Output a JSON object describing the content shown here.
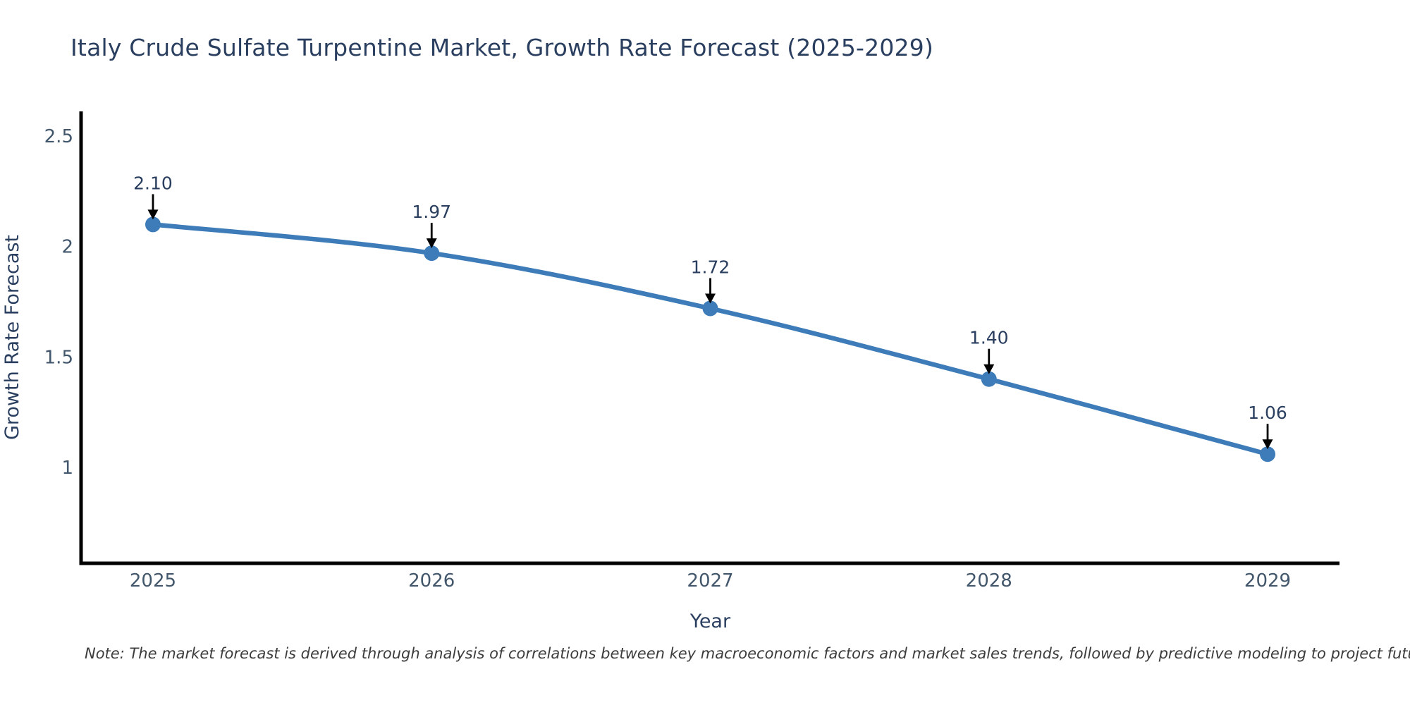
{
  "note": {
    "text": "Note: The market forecast is derived through analysis of correlations between key macroeconomic factors and market sales trends, followed by predictive modeling to project future sales."
  },
  "chart_data": {
    "type": "line",
    "title": "Italy Crude Sulfate Turpentine Market, Growth Rate Forecast (2025-2029)",
    "xlabel": "Year",
    "ylabel": "Growth Rate Forecast",
    "x": [
      2025,
      2026,
      2027,
      2028,
      2029
    ],
    "y": [
      2.1,
      1.97,
      1.72,
      1.4,
      1.06
    ],
    "point_labels": [
      "2.10",
      "1.97",
      "1.72",
      "1.40",
      "1.06"
    ],
    "x_tick_labels": [
      "2025",
      "2026",
      "2027",
      "2028",
      "2029"
    ],
    "y_ticks": [
      2.5,
      2,
      1.5,
      1
    ],
    "y_tick_labels": [
      "2.5",
      "2",
      "1.5",
      "1"
    ],
    "xlim": [
      2024.742,
      2029.258
    ],
    "ylim": [
      0.566,
      2.612
    ],
    "grid": false,
    "legend": false,
    "annotations": "value labels with black down-arrows above each data point",
    "colors": {
      "line": "#3d7cb8",
      "marker": "#3d7cb8",
      "annotation_arrow": "#000000",
      "annotation_text": "#2a3f5f",
      "axis_line": "#000000",
      "tick_text": "#42576b",
      "axis_title_text": "#2a3f5f",
      "title_text": "#2a3f5f",
      "note_text": "#3c3c3c"
    }
  }
}
